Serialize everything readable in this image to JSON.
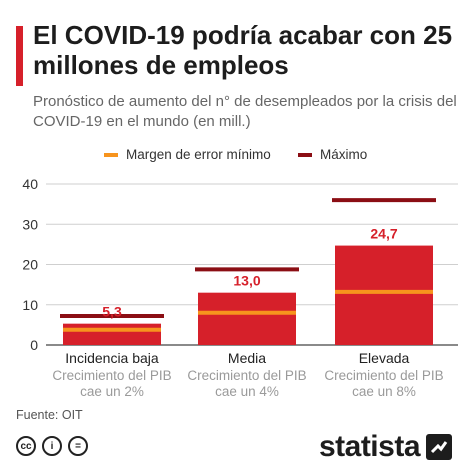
{
  "title": "El COVID-19 podría acabar con 25 millones de empleos",
  "subtitle": "Pronóstico de aumento del n° de desempleados por la crisis del COVID-19 en el mundo (en mill.)",
  "legend": {
    "min_label": "Margen de error mínimo",
    "max_label": "Máximo"
  },
  "source": "Fuente: OIT",
  "brand": "statista",
  "colors": {
    "bar": "#d6202a",
    "max_line": "#8b0e14",
    "min_line": "#f7941d",
    "value_label": "#d6202a",
    "sublabel": "#9a9a9a"
  },
  "chart_data": {
    "type": "bar",
    "categories": [
      "Incidencia baja",
      "Media",
      "Elevada"
    ],
    "sublabels": [
      [
        "Crecimiento del PIB",
        "cae un 2%"
      ],
      [
        "Crecimiento del PIB",
        "cae un 4%"
      ],
      [
        "Crecimiento del PIB",
        "cae un 8%"
      ]
    ],
    "values": [
      5.3,
      13.0,
      24.7
    ],
    "value_labels": [
      "5,3",
      "13,0",
      "24,7"
    ],
    "min_error": [
      3.8,
      8.0,
      13.2
    ],
    "max": [
      7.2,
      18.8,
      36.0
    ],
    "yticks": [
      0,
      10,
      20,
      30,
      40
    ],
    "ylim": [
      0,
      40
    ],
    "grid": true
  }
}
